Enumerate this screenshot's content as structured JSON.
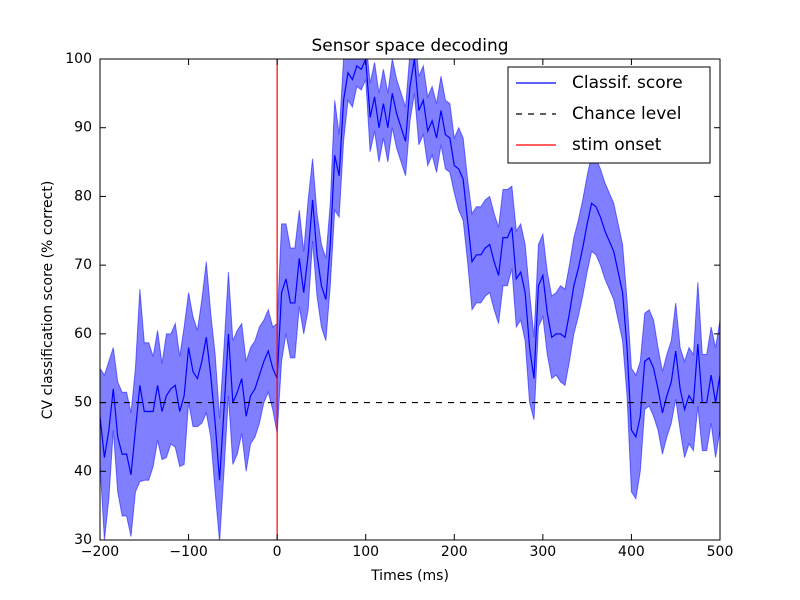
{
  "chart_data": {
    "type": "line",
    "title": "Sensor space decoding",
    "xlabel": "Times (ms)",
    "ylabel": "CV classification score (% correct)",
    "x": [
      -200,
      -195,
      -190,
      -185,
      -180,
      -175,
      -170,
      -165,
      -160,
      -155,
      -150,
      -145,
      -140,
      -135,
      -130,
      -125,
      -120,
      -115,
      -110,
      -105,
      -100,
      -95,
      -90,
      -85,
      -80,
      -75,
      -70,
      -65,
      -60,
      -55,
      -50,
      -45,
      -40,
      -35,
      -30,
      -25,
      -20,
      -15,
      -10,
      -5,
      0,
      5,
      10,
      15,
      20,
      25,
      30,
      35,
      40,
      45,
      50,
      55,
      60,
      65,
      70,
      75,
      80,
      85,
      90,
      95,
      100,
      105,
      110,
      115,
      120,
      125,
      130,
      135,
      140,
      145,
      150,
      155,
      160,
      165,
      170,
      175,
      180,
      185,
      190,
      195,
      200,
      205,
      210,
      215,
      220,
      225,
      230,
      235,
      240,
      245,
      250,
      255,
      260,
      265,
      270,
      275,
      280,
      285,
      290,
      295,
      300,
      305,
      310,
      315,
      320,
      325,
      330,
      335,
      340,
      345,
      350,
      355,
      360,
      365,
      370,
      375,
      380,
      385,
      390,
      395,
      400,
      405,
      410,
      415,
      420,
      425,
      430,
      435,
      440,
      445,
      450,
      455,
      460,
      465,
      470,
      475,
      480,
      485,
      490,
      495,
      500
    ],
    "series": [
      {
        "name": "Classif. score",
        "color": "#0000ff",
        "values": [
          48,
          42,
          46,
          52,
          45,
          42.5,
          42.5,
          39.5,
          46,
          52.5,
          48.7,
          48.7,
          48.7,
          52.5,
          48.7,
          51,
          52,
          52.5,
          48.7,
          51,
          58,
          54.5,
          53.5,
          56,
          59.5,
          54,
          47,
          38.7,
          49,
          60,
          50,
          51.5,
          53.5,
          48,
          51,
          52,
          54,
          56,
          57.5,
          55,
          53.5,
          66,
          68,
          64.5,
          64.5,
          71,
          66,
          71.5,
          79.5,
          71.5,
          67,
          65,
          73,
          86,
          83,
          94,
          98,
          97,
          99,
          98.5,
          100,
          91.5,
          94.5,
          90,
          93.5,
          90,
          95,
          92,
          90,
          88,
          96,
          100,
          92.5,
          94,
          89.5,
          91,
          88.5,
          92.5,
          89,
          88.5,
          84.5,
          84,
          82.5,
          76.5,
          70.5,
          71.5,
          71.5,
          72.5,
          73,
          70.5,
          68.5,
          74,
          74,
          75.5,
          68,
          69,
          66,
          58,
          53.5,
          67,
          68.5,
          63,
          59.5,
          60,
          60,
          59.5,
          63,
          67,
          69.5,
          72.5,
          76,
          79,
          78.5,
          77,
          75,
          73.5,
          72,
          69,
          66,
          58,
          46,
          45,
          48,
          56,
          56.5,
          55,
          52,
          48.5,
          51,
          53,
          57.5,
          52,
          49,
          51,
          50,
          58.5,
          50,
          50,
          54,
          50,
          54
        ],
        "std": [
          7,
          12,
          10,
          6,
          8,
          9,
          9,
          9,
          9,
          14,
          10,
          10,
          8,
          8,
          7,
          9,
          8,
          9,
          8,
          10,
          8,
          8,
          7,
          9,
          11,
          9,
          10,
          9,
          9,
          9,
          9,
          9,
          8,
          8,
          7,
          7,
          7,
          6,
          6,
          6,
          8,
          10,
          8,
          8,
          8,
          7,
          6,
          8,
          6,
          6,
          6,
          6,
          6,
          8,
          6,
          6,
          4,
          4,
          3,
          3,
          3,
          5,
          5,
          5,
          5,
          5,
          5,
          5,
          5,
          5,
          5,
          5,
          5,
          5,
          5,
          5,
          5,
          5,
          5,
          5,
          4,
          6,
          6,
          6,
          7,
          7,
          7,
          7,
          7,
          7,
          7,
          7,
          7,
          6,
          7,
          7,
          7,
          8,
          6,
          6,
          6,
          6,
          6,
          6,
          7,
          7,
          7,
          7,
          7,
          7,
          7,
          7,
          7,
          7,
          7,
          7,
          7,
          7,
          7,
          7,
          9,
          9,
          8,
          7,
          7,
          7,
          6,
          6,
          6,
          6,
          7,
          6,
          7,
          7,
          7,
          9,
          7,
          7,
          7,
          8,
          8
        ],
        "band_color": "#0000ff"
      }
    ],
    "hlines": [
      {
        "name": "Chance level",
        "color": "#000000",
        "value": 50,
        "dashed": true
      }
    ],
    "vlines": [
      {
        "name": "stim onset",
        "color": "#ff0000",
        "value": 0
      }
    ],
    "xlim": [
      -200,
      500
    ],
    "ylim": [
      30,
      100
    ],
    "xticks": [
      {
        "value": -200,
        "label": "−200"
      },
      {
        "value": -100,
        "label": "−100"
      },
      0,
      100,
      200,
      300,
      400,
      500
    ],
    "yticks": [
      30,
      40,
      50,
      60,
      70,
      80,
      90,
      100
    ],
    "grid": false,
    "legend": "upper right"
  }
}
